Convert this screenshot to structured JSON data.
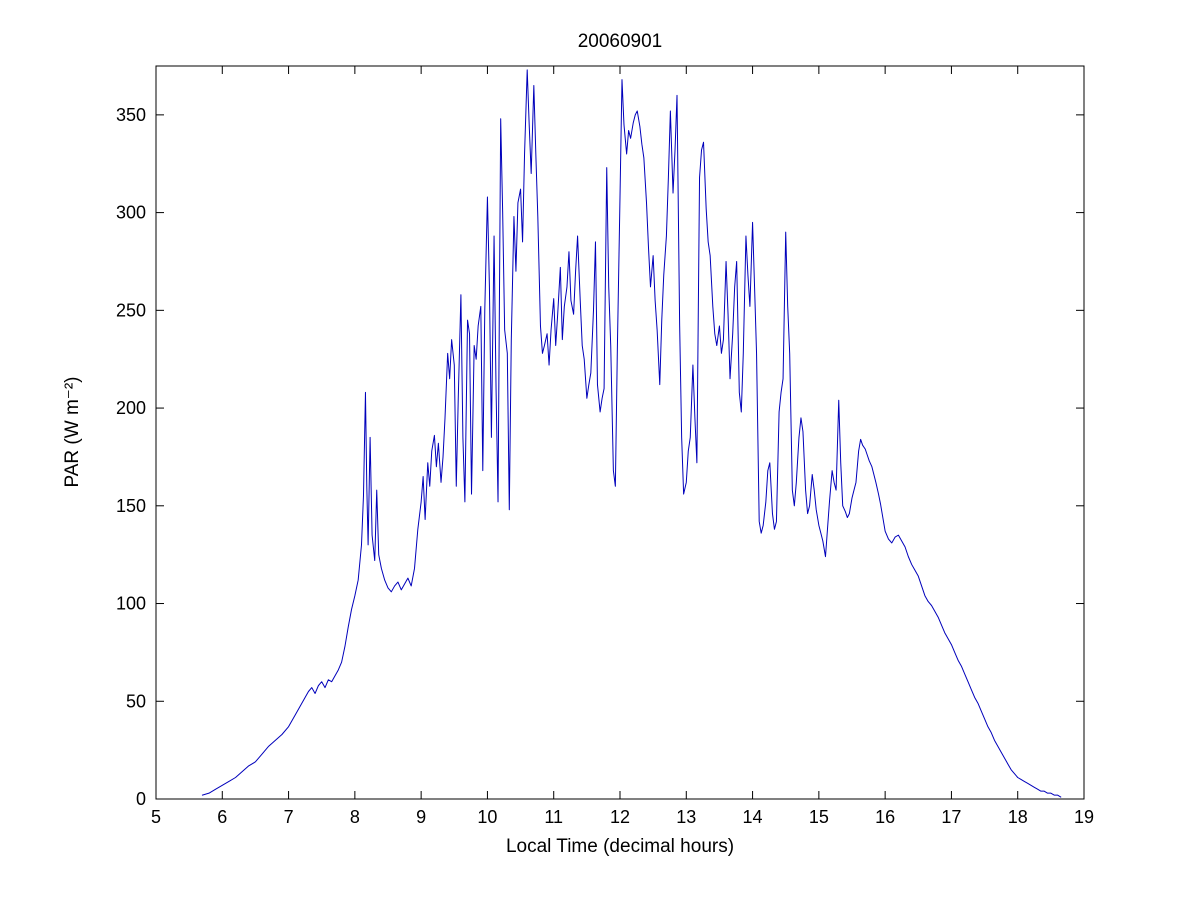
{
  "figure": {
    "background": "#ffffff"
  },
  "chart_data": {
    "type": "line",
    "title": "20060901",
    "xlabel": "Local Time (decimal hours)",
    "ylabel": "PAR (W m⁻²)",
    "xlim": [
      5,
      19
    ],
    "ylim": [
      0,
      375
    ],
    "xticks": [
      5,
      6,
      7,
      8,
      9,
      10,
      11,
      12,
      13,
      14,
      15,
      16,
      17,
      18,
      19
    ],
    "yticks": [
      0,
      50,
      100,
      150,
      200,
      250,
      300,
      350
    ],
    "grid": false,
    "legend_position": "none",
    "line_color": "#0000bb",
    "axis_color": "#000000",
    "series": [
      {
        "name": "PAR",
        "points": [
          [
            5.7,
            2
          ],
          [
            5.8,
            3
          ],
          [
            5.9,
            5
          ],
          [
            6.0,
            7
          ],
          [
            6.1,
            9
          ],
          [
            6.2,
            11
          ],
          [
            6.3,
            14
          ],
          [
            6.4,
            17
          ],
          [
            6.5,
            19
          ],
          [
            6.6,
            23
          ],
          [
            6.7,
            27
          ],
          [
            6.8,
            30
          ],
          [
            6.9,
            33
          ],
          [
            7.0,
            37
          ],
          [
            7.1,
            43
          ],
          [
            7.2,
            49
          ],
          [
            7.3,
            55
          ],
          [
            7.35,
            57
          ],
          [
            7.4,
            54
          ],
          [
            7.45,
            58
          ],
          [
            7.5,
            60
          ],
          [
            7.55,
            57
          ],
          [
            7.6,
            61
          ],
          [
            7.65,
            60
          ],
          [
            7.7,
            63
          ],
          [
            7.75,
            66
          ],
          [
            7.8,
            70
          ],
          [
            7.85,
            78
          ],
          [
            7.9,
            88
          ],
          [
            7.95,
            97
          ],
          [
            8.0,
            104
          ],
          [
            8.05,
            112
          ],
          [
            8.1,
            130
          ],
          [
            8.13,
            155
          ],
          [
            8.16,
            208
          ],
          [
            8.18,
            160
          ],
          [
            8.2,
            130
          ],
          [
            8.23,
            185
          ],
          [
            8.26,
            135
          ],
          [
            8.3,
            122
          ],
          [
            8.33,
            158
          ],
          [
            8.36,
            125
          ],
          [
            8.4,
            118
          ],
          [
            8.45,
            112
          ],
          [
            8.5,
            108
          ],
          [
            8.55,
            106
          ],
          [
            8.6,
            109
          ],
          [
            8.65,
            111
          ],
          [
            8.7,
            107
          ],
          [
            8.75,
            110
          ],
          [
            8.8,
            113
          ],
          [
            8.85,
            109
          ],
          [
            8.9,
            118
          ],
          [
            8.95,
            138
          ],
          [
            9.0,
            152
          ],
          [
            9.03,
            165
          ],
          [
            9.06,
            143
          ],
          [
            9.1,
            172
          ],
          [
            9.13,
            160
          ],
          [
            9.16,
            178
          ],
          [
            9.2,
            186
          ],
          [
            9.23,
            170
          ],
          [
            9.26,
            182
          ],
          [
            9.3,
            162
          ],
          [
            9.33,
            175
          ],
          [
            9.36,
            195
          ],
          [
            9.4,
            228
          ],
          [
            9.43,
            215
          ],
          [
            9.46,
            235
          ],
          [
            9.5,
            222
          ],
          [
            9.53,
            160
          ],
          [
            9.56,
            205
          ],
          [
            9.6,
            258
          ],
          [
            9.63,
            185
          ],
          [
            9.66,
            152
          ],
          [
            9.7,
            245
          ],
          [
            9.73,
            238
          ],
          [
            9.76,
            156
          ],
          [
            9.8,
            232
          ],
          [
            9.83,
            225
          ],
          [
            9.86,
            242
          ],
          [
            9.9,
            252
          ],
          [
            9.93,
            168
          ],
          [
            9.96,
            250
          ],
          [
            10.0,
            308
          ],
          [
            10.03,
            262
          ],
          [
            10.06,
            185
          ],
          [
            10.1,
            288
          ],
          [
            10.13,
            210
          ],
          [
            10.16,
            152
          ],
          [
            10.2,
            348
          ],
          [
            10.23,
            300
          ],
          [
            10.26,
            240
          ],
          [
            10.3,
            228
          ],
          [
            10.33,
            148
          ],
          [
            10.36,
            235
          ],
          [
            10.4,
            298
          ],
          [
            10.43,
            270
          ],
          [
            10.46,
            305
          ],
          [
            10.5,
            312
          ],
          [
            10.53,
            285
          ],
          [
            10.56,
            330
          ],
          [
            10.6,
            373
          ],
          [
            10.63,
            345
          ],
          [
            10.66,
            320
          ],
          [
            10.7,
            365
          ],
          [
            10.73,
            330
          ],
          [
            10.76,
            298
          ],
          [
            10.8,
            242
          ],
          [
            10.83,
            228
          ],
          [
            10.86,
            232
          ],
          [
            10.9,
            238
          ],
          [
            10.93,
            222
          ],
          [
            10.96,
            240
          ],
          [
            11.0,
            256
          ],
          [
            11.03,
            232
          ],
          [
            11.06,
            248
          ],
          [
            11.1,
            272
          ],
          [
            11.13,
            235
          ],
          [
            11.16,
            252
          ],
          [
            11.2,
            262
          ],
          [
            11.23,
            280
          ],
          [
            11.26,
            255
          ],
          [
            11.3,
            248
          ],
          [
            11.33,
            270
          ],
          [
            11.36,
            288
          ],
          [
            11.4,
            255
          ],
          [
            11.43,
            232
          ],
          [
            11.46,
            225
          ],
          [
            11.5,
            205
          ],
          [
            11.53,
            212
          ],
          [
            11.56,
            218
          ],
          [
            11.6,
            250
          ],
          [
            11.63,
            285
          ],
          [
            11.66,
            212
          ],
          [
            11.7,
            198
          ],
          [
            11.73,
            205
          ],
          [
            11.76,
            210
          ],
          [
            11.8,
            323
          ],
          [
            11.83,
            262
          ],
          [
            11.86,
            232
          ],
          [
            11.9,
            168
          ],
          [
            11.93,
            160
          ],
          [
            11.96,
            230
          ],
          [
            12.0,
            308
          ],
          [
            12.03,
            368
          ],
          [
            12.06,
            345
          ],
          [
            12.1,
            330
          ],
          [
            12.13,
            342
          ],
          [
            12.16,
            338
          ],
          [
            12.2,
            346
          ],
          [
            12.23,
            350
          ],
          [
            12.26,
            352
          ],
          [
            12.3,
            344
          ],
          [
            12.33,
            335
          ],
          [
            12.36,
            328
          ],
          [
            12.4,
            305
          ],
          [
            12.43,
            282
          ],
          [
            12.46,
            262
          ],
          [
            12.5,
            278
          ],
          [
            12.53,
            255
          ],
          [
            12.56,
            240
          ],
          [
            12.6,
            212
          ],
          [
            12.63,
            245
          ],
          [
            12.66,
            268
          ],
          [
            12.7,
            288
          ],
          [
            12.73,
            318
          ],
          [
            12.76,
            352
          ],
          [
            12.8,
            310
          ],
          [
            12.83,
            332
          ],
          [
            12.86,
            360
          ],
          [
            12.9,
            242
          ],
          [
            12.93,
            185
          ],
          [
            12.96,
            156
          ],
          [
            13.0,
            162
          ],
          [
            13.03,
            178
          ],
          [
            13.06,
            185
          ],
          [
            13.1,
            222
          ],
          [
            13.13,
            195
          ],
          [
            13.16,
            172
          ],
          [
            13.2,
            318
          ],
          [
            13.23,
            332
          ],
          [
            13.26,
            336
          ],
          [
            13.3,
            302
          ],
          [
            13.33,
            285
          ],
          [
            13.36,
            278
          ],
          [
            13.4,
            252
          ],
          [
            13.43,
            238
          ],
          [
            13.46,
            232
          ],
          [
            13.5,
            242
          ],
          [
            13.53,
            228
          ],
          [
            13.56,
            235
          ],
          [
            13.6,
            275
          ],
          [
            13.63,
            248
          ],
          [
            13.66,
            215
          ],
          [
            13.7,
            238
          ],
          [
            13.73,
            262
          ],
          [
            13.76,
            275
          ],
          [
            13.8,
            208
          ],
          [
            13.83,
            198
          ],
          [
            13.86,
            228
          ],
          [
            13.9,
            288
          ],
          [
            13.93,
            268
          ],
          [
            13.96,
            252
          ],
          [
            14.0,
            295
          ],
          [
            14.03,
            262
          ],
          [
            14.06,
            228
          ],
          [
            14.1,
            142
          ],
          [
            14.13,
            136
          ],
          [
            14.16,
            140
          ],
          [
            14.2,
            152
          ],
          [
            14.23,
            168
          ],
          [
            14.26,
            172
          ],
          [
            14.3,
            146
          ],
          [
            14.33,
            138
          ],
          [
            14.36,
            142
          ],
          [
            14.4,
            198
          ],
          [
            14.43,
            208
          ],
          [
            14.46,
            215
          ],
          [
            14.5,
            290
          ],
          [
            14.53,
            252
          ],
          [
            14.56,
            228
          ],
          [
            14.6,
            158
          ],
          [
            14.63,
            150
          ],
          [
            14.66,
            162
          ],
          [
            14.7,
            185
          ],
          [
            14.73,
            195
          ],
          [
            14.76,
            188
          ],
          [
            14.8,
            158
          ],
          [
            14.83,
            146
          ],
          [
            14.86,
            150
          ],
          [
            14.9,
            166
          ],
          [
            14.93,
            158
          ],
          [
            14.96,
            148
          ],
          [
            15.0,
            140
          ],
          [
            15.03,
            136
          ],
          [
            15.06,
            132
          ],
          [
            15.1,
            124
          ],
          [
            15.13,
            138
          ],
          [
            15.16,
            152
          ],
          [
            15.2,
            168
          ],
          [
            15.23,
            162
          ],
          [
            15.26,
            158
          ],
          [
            15.3,
            204
          ],
          [
            15.33,
            172
          ],
          [
            15.36,
            150
          ],
          [
            15.4,
            147
          ],
          [
            15.43,
            144
          ],
          [
            15.46,
            146
          ],
          [
            15.5,
            154
          ],
          [
            15.53,
            158
          ],
          [
            15.56,
            162
          ],
          [
            15.6,
            178
          ],
          [
            15.63,
            184
          ],
          [
            15.66,
            181
          ],
          [
            15.7,
            179
          ],
          [
            15.73,
            176
          ],
          [
            15.76,
            173
          ],
          [
            15.8,
            170
          ],
          [
            15.83,
            166
          ],
          [
            15.86,
            162
          ],
          [
            15.9,
            156
          ],
          [
            15.93,
            151
          ],
          [
            15.96,
            145
          ],
          [
            16.0,
            137
          ],
          [
            16.05,
            133
          ],
          [
            16.1,
            131
          ],
          [
            16.15,
            134
          ],
          [
            16.2,
            135
          ],
          [
            16.25,
            132
          ],
          [
            16.3,
            129
          ],
          [
            16.35,
            124
          ],
          [
            16.4,
            120
          ],
          [
            16.45,
            117
          ],
          [
            16.5,
            114
          ],
          [
            16.55,
            109
          ],
          [
            16.6,
            104
          ],
          [
            16.65,
            101
          ],
          [
            16.7,
            99
          ],
          [
            16.75,
            96
          ],
          [
            16.8,
            93
          ],
          [
            16.85,
            89
          ],
          [
            16.9,
            85
          ],
          [
            16.95,
            82
          ],
          [
            17.0,
            79
          ],
          [
            17.05,
            75
          ],
          [
            17.1,
            71
          ],
          [
            17.15,
            68
          ],
          [
            17.2,
            64
          ],
          [
            17.25,
            60
          ],
          [
            17.3,
            56
          ],
          [
            17.35,
            52
          ],
          [
            17.4,
            49
          ],
          [
            17.45,
            45
          ],
          [
            17.5,
            41
          ],
          [
            17.55,
            37
          ],
          [
            17.6,
            34
          ],
          [
            17.65,
            30
          ],
          [
            17.7,
            27
          ],
          [
            17.75,
            24
          ],
          [
            17.8,
            21
          ],
          [
            17.85,
            18
          ],
          [
            17.9,
            15
          ],
          [
            17.95,
            13
          ],
          [
            18.0,
            11
          ],
          [
            18.05,
            10
          ],
          [
            18.1,
            9
          ],
          [
            18.15,
            8
          ],
          [
            18.2,
            7
          ],
          [
            18.25,
            6
          ],
          [
            18.3,
            5
          ],
          [
            18.35,
            4
          ],
          [
            18.4,
            4
          ],
          [
            18.45,
            3
          ],
          [
            18.5,
            3
          ],
          [
            18.55,
            2
          ],
          [
            18.6,
            2
          ],
          [
            18.65,
            1
          ]
        ]
      }
    ]
  }
}
